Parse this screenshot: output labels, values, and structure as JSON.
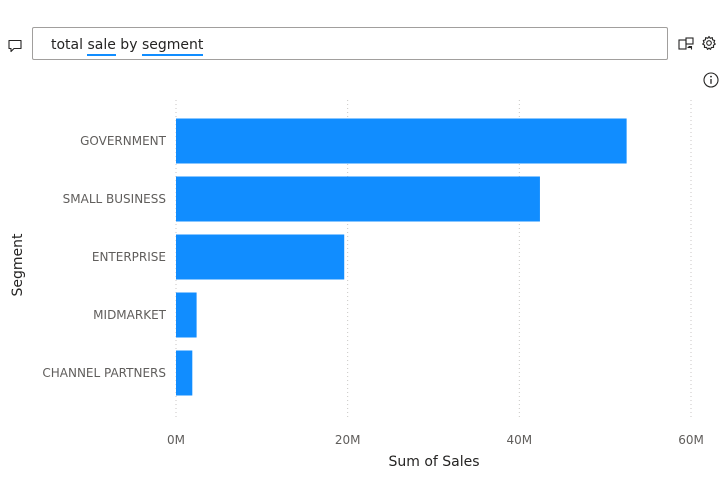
{
  "qna": {
    "query_parts": [
      "total ",
      "sale",
      " by ",
      "segment"
    ],
    "underlined_terms": [
      "sale",
      "segment"
    ],
    "icons": {
      "left": "speech-bubble-icon",
      "right": [
        "turn-into-visual-icon",
        "settings-gear-icon"
      ],
      "info": "info-icon"
    }
  },
  "colors": {
    "bar": "#118dff",
    "term_underline": "#118dff",
    "gridline": "#c8c6c4"
  },
  "chart_data": {
    "type": "bar",
    "orientation": "horizontal",
    "categories": [
      "GOVERNMENT",
      "SMALL BUSINESS",
      "ENTERPRISE",
      "MIDMARKET",
      "CHANNEL PARTNERS"
    ],
    "values": [
      52.5,
      42.4,
      19.6,
      2.4,
      1.9
    ],
    "value_unit": "M",
    "xlabel": "Sum of Sales",
    "ylabel": "Segment",
    "xlim": [
      0,
      60
    ],
    "xticks": [
      "0M",
      "20M",
      "40M",
      "60M"
    ],
    "xtick_values": [
      0,
      20,
      40,
      60
    ],
    "grid": "vertical-dotted",
    "legend": "none"
  }
}
